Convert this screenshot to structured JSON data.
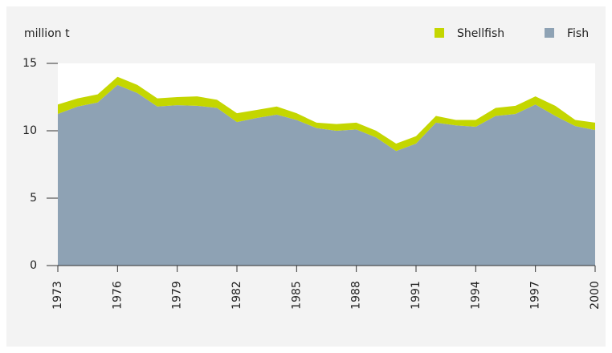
{
  "chart_data": {
    "type": "stacked-area",
    "y_label": "million t",
    "x": [
      1973,
      1974,
      1975,
      1976,
      1977,
      1978,
      1979,
      1980,
      1981,
      1982,
      1983,
      1984,
      1985,
      1986,
      1987,
      1988,
      1989,
      1990,
      1991,
      1992,
      1993,
      1994,
      1995,
      1996,
      1997,
      1998,
      1999,
      2000
    ],
    "series": [
      {
        "name": "Fish",
        "color": "#8ea2b4",
        "values": [
          11.25,
          11.8,
          12.1,
          13.4,
          12.8,
          11.8,
          11.9,
          11.85,
          11.7,
          10.65,
          10.95,
          11.2,
          10.8,
          10.2,
          10.0,
          10.1,
          9.5,
          8.5,
          9.05,
          10.6,
          10.4,
          10.3,
          11.1,
          11.25,
          11.95,
          11.1,
          10.35,
          10.05
        ]
      },
      {
        "name": "Shellfish",
        "color": "#c4d600",
        "values": [
          0.7,
          0.6,
          0.6,
          0.6,
          0.6,
          0.6,
          0.6,
          0.7,
          0.6,
          0.65,
          0.6,
          0.6,
          0.5,
          0.4,
          0.5,
          0.5,
          0.5,
          0.55,
          0.55,
          0.5,
          0.4,
          0.5,
          0.6,
          0.6,
          0.6,
          0.75,
          0.45,
          0.55
        ]
      }
    ],
    "xlim": [
      1973,
      2000
    ],
    "xticks": [
      1973,
      1976,
      1979,
      1982,
      1985,
      1988,
      1991,
      1994,
      1997,
      2000
    ],
    "ylim": [
      0,
      15
    ],
    "yticks": [
      0,
      5,
      10,
      15
    ]
  }
}
